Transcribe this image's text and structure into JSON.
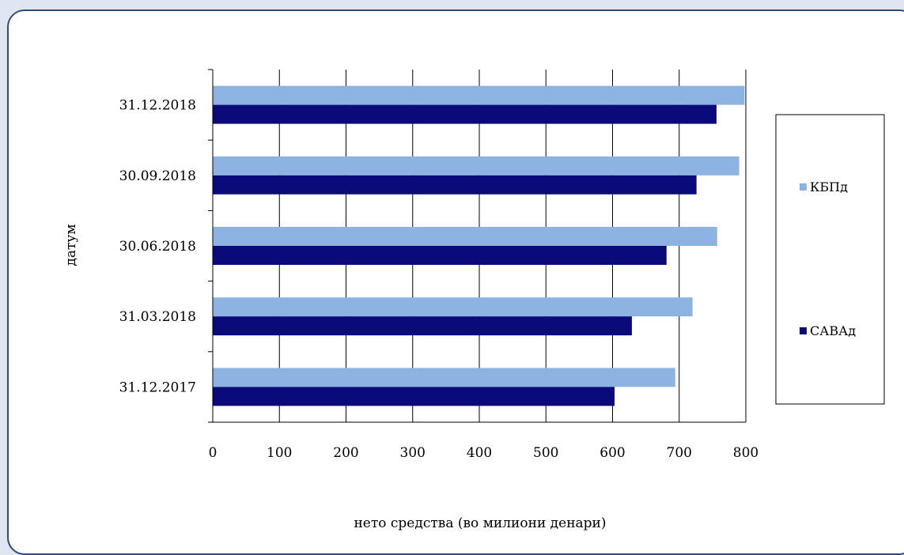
{
  "chart_data": {
    "type": "bar",
    "orientation": "horizontal",
    "categories": [
      "31.12.2017",
      "31.03.2018",
      "30.06.2018",
      "30.09.2018",
      "31.12.2018"
    ],
    "series": [
      {
        "name": "КБПд",
        "color": "#8db3e2",
        "values": [
          694,
          720,
          757,
          790,
          798
        ]
      },
      {
        "name": "САВАд",
        "color": "#0a0a7a",
        "values": [
          603,
          629,
          681,
          726,
          756
        ]
      }
    ],
    "xlabel": "нето средства (во милиони денари)",
    "ylabel": "датум",
    "xlim": [
      0,
      800
    ],
    "xticks": [
      0,
      100,
      200,
      300,
      400,
      500,
      600,
      700,
      800
    ],
    "grid": "vertical",
    "legend": "right"
  }
}
